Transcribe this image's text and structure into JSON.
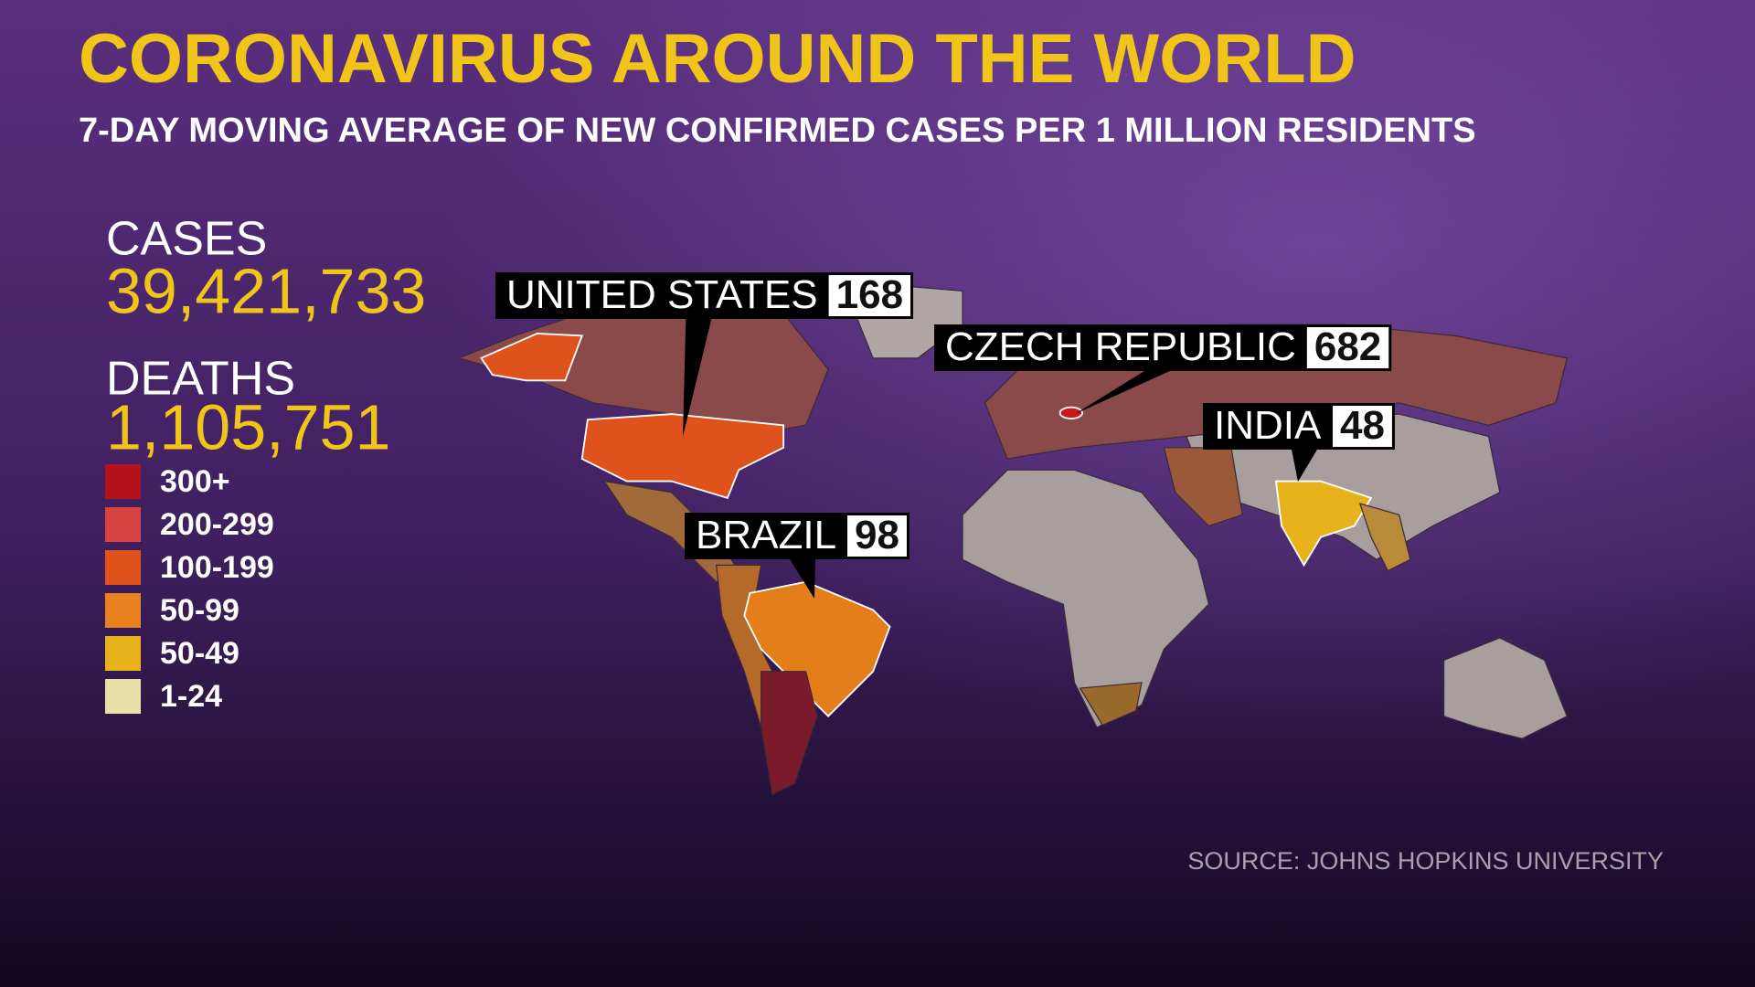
{
  "header": {
    "title": "CORONAVIRUS AROUND THE WORLD",
    "subtitle": "7-DAY MOVING AVERAGE OF NEW CONFIRMED CASES PER 1 MILLION RESIDENTS"
  },
  "stats": {
    "cases_label": "CASES",
    "cases": "39,421,733",
    "deaths_label": "DEATHS",
    "deaths": "1,105,751"
  },
  "legend": [
    {
      "label": "300+",
      "color": "#b3121c"
    },
    {
      "label": "200-299",
      "color": "#d94443"
    },
    {
      "label": "100-199",
      "color": "#e0521c"
    },
    {
      "label": "50-99",
      "color": "#e8811f"
    },
    {
      "label": "50-49",
      "color": "#e8b21a"
    },
    {
      "label": "1-24",
      "color": "#e6e0a6"
    }
  ],
  "callouts": [
    {
      "name": "UNITED STATES",
      "value": 168
    },
    {
      "name": "CZECH REPUBLIC",
      "value": 682
    },
    {
      "name": "INDIA",
      "value": 48
    },
    {
      "name": "BRAZIL",
      "value": 98
    }
  ],
  "source": "SOURCE: JOHNS HOPKINS UNIVERSITY"
}
